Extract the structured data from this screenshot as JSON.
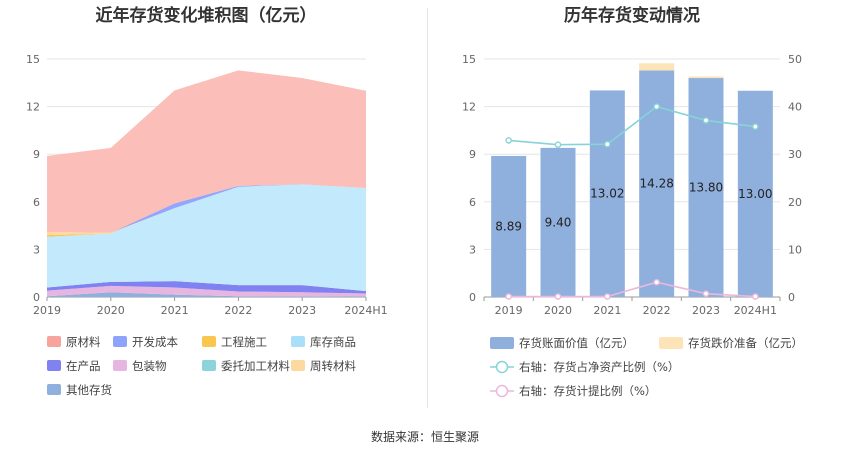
{
  "source": "数据来源：恒生聚源",
  "chart_data": [
    {
      "type": "area",
      "stacked": true,
      "title": "近年存货变化堆积图（亿元）",
      "categories": [
        "2019",
        "2020",
        "2021",
        "2022",
        "2023",
        "2024H1"
      ],
      "ylim": [
        0,
        15
      ],
      "yticks": [
        "0",
        "3",
        "6",
        "9",
        "12",
        "15"
      ],
      "grid": true,
      "legend_position": "bottom",
      "series": [
        {
          "name": "其他存货",
          "color": "#8fb0dd",
          "values": [
            0.05,
            0.3,
            0.15,
            0.05,
            0.05,
            0.02
          ]
        },
        {
          "name": "委托加工材料",
          "color": "#8ed3dc",
          "values": [
            0,
            0,
            0,
            0,
            0,
            0
          ]
        },
        {
          "name": "包装物",
          "color": "#e7b6e0",
          "values": [
            0.35,
            0.4,
            0.45,
            0.3,
            0.25,
            0.2
          ]
        },
        {
          "name": "在产品",
          "color": "#7f82f0",
          "values": [
            0.2,
            0.25,
            0.4,
            0.4,
            0.45,
            0.15
          ]
        },
        {
          "name": "库存商品",
          "color": "#c2e9fc",
          "values": [
            3.2,
            3.05,
            4.6,
            6.2,
            6.35,
            6.5
          ]
        },
        {
          "name": "工程施工",
          "color": "#f9c74f",
          "values": [
            0.1,
            0,
            0,
            0,
            0,
            0
          ]
        },
        {
          "name": "周转材料",
          "color": "#fdd9a0",
          "values": [
            0.2,
            0.05,
            0,
            0,
            0,
            0
          ]
        },
        {
          "name": "开发成本",
          "color": "#94a6fb",
          "values": [
            0,
            0,
            0.3,
            0.05,
            0,
            0
          ]
        },
        {
          "name": "原材料",
          "color": "#fbbeb8",
          "values": [
            4.79,
            5.35,
            7.12,
            7.28,
            6.7,
            6.13
          ]
        }
      ],
      "legend": [
        {
          "name": "原材料",
          "color": "#f7a49c"
        },
        {
          "name": "开发成本",
          "color": "#8ea4fb"
        },
        {
          "name": "工程施工",
          "color": "#f9c74f"
        },
        {
          "name": "库存商品",
          "color": "#a9dff8"
        },
        {
          "name": "在产品",
          "color": "#7f82f0"
        },
        {
          "name": "包装物",
          "color": "#e7b6e0"
        },
        {
          "name": "委托加工材料",
          "color": "#8ed3dc"
        },
        {
          "name": "周转材料",
          "color": "#fdd9a0"
        },
        {
          "name": "其他存货",
          "color": "#8fb0dd"
        }
      ]
    },
    {
      "type": "bar",
      "stacked": true,
      "title": "历年存货变动情况",
      "categories": [
        "2019",
        "2020",
        "2021",
        "2022",
        "2023",
        "2024H1"
      ],
      "ylim": [
        0,
        15
      ],
      "yticks": [
        "0",
        "3",
        "6",
        "9",
        "12",
        "15"
      ],
      "y2lim": [
        0,
        50
      ],
      "y2ticks": [
        "0",
        "10",
        "20",
        "30",
        "40",
        "50"
      ],
      "grid": true,
      "legend_position": "bottom",
      "series": [
        {
          "name": "存货账面价值（亿元）",
          "color": "#8fb0dd",
          "axis": "left",
          "values": [
            8.89,
            9.4,
            13.02,
            14.28,
            13.8,
            13.0
          ],
          "labels": [
            "8.89",
            "9.40",
            "13.02",
            "14.28",
            "13.80",
            "13.00"
          ]
        },
        {
          "name": "存货跌价准备（亿元）",
          "color": "#fde3b8",
          "axis": "left",
          "values": [
            0.0,
            0.0,
            0.0,
            0.45,
            0.1,
            0.0
          ]
        },
        {
          "name": "右轴：存货占净资产比例（%）",
          "color": "#86d3d8",
          "type": "line",
          "axis": "right",
          "values": [
            32.9,
            32.0,
            32.1,
            40.0,
            37.1,
            35.8
          ]
        },
        {
          "name": "右轴：存货计提比例（%）",
          "color": "#eab8dd",
          "type": "line",
          "axis": "right",
          "values": [
            0.1,
            0.1,
            0.1,
            3.1,
            0.7,
            0.1
          ]
        }
      ]
    }
  ]
}
